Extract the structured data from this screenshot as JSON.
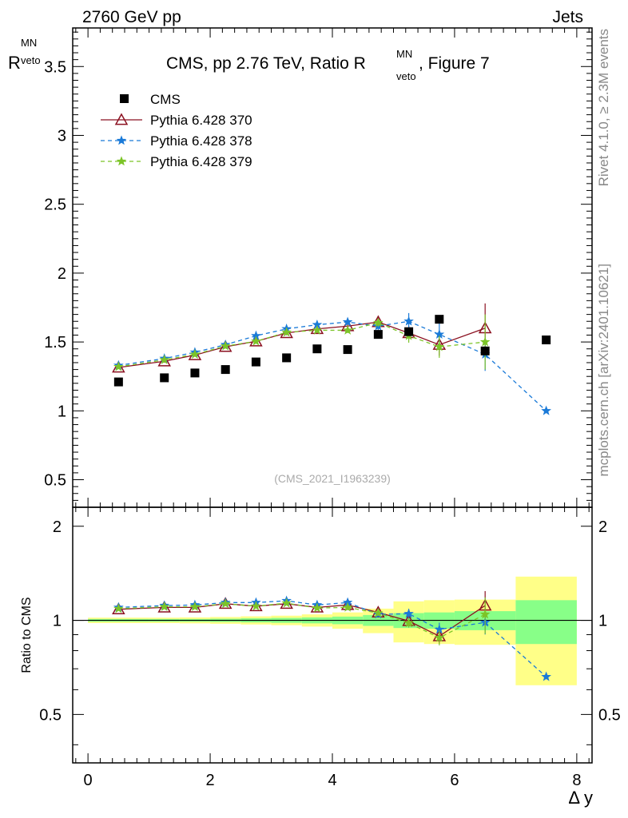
{
  "header": {
    "left": "2760 GeV pp",
    "right": "Jets"
  },
  "side_labels": {
    "rivet": "Rivet 4.1.0, ≥ 2.3M events",
    "mcplots": "mcplots.cern.ch [arXiv:2401.10621]"
  },
  "chart_data": {
    "type": "scatter",
    "title": "CMS, pp 2.76 TeV, Ratio R",
    "title_sup": "MN",
    "title_sub": "veto",
    "title_suffix": ", Figure 7",
    "analysis_tag": "(CMS_2021_I1963239)",
    "xlabel": "Δ y",
    "ylabel": "R",
    "ylabel_sup": "MN",
    "ylabel_sub": "veto",
    "ratio_ylabel": "Ratio to CMS",
    "xlim": [
      -0.25,
      8.25
    ],
    "ylim": [
      0.3,
      3.78
    ],
    "ratio_ylim": [
      0.35,
      2.3
    ],
    "x_ticks": [
      0,
      2,
      4,
      6,
      8
    ],
    "y_ticks": [
      0.5,
      1,
      1.5,
      2,
      2.5,
      3,
      3.5
    ],
    "ratio_y_ticks": [
      0.5,
      1,
      2
    ],
    "legend_position": "top-left",
    "legend": [
      {
        "name": "CMS",
        "color": "#000000",
        "marker": "square",
        "line": "none"
      },
      {
        "name": "Pythia 6.428 370",
        "color": "#8b1020",
        "marker": "triangle-open",
        "line": "solid"
      },
      {
        "name": "Pythia 6.428 378",
        "color": "#1a7ad8",
        "marker": "star",
        "line": "dashed"
      },
      {
        "name": "Pythia 6.428 379",
        "color": "#7cc428",
        "marker": "star",
        "line": "dashed"
      }
    ],
    "data": {
      "name": "CMS",
      "x": [
        0.5,
        1.25,
        1.75,
        2.25,
        2.75,
        3.25,
        3.75,
        4.25,
        4.75,
        5.25,
        5.75,
        6.5,
        7.5
      ],
      "y": [
        1.21,
        1.24,
        1.275,
        1.3,
        1.355,
        1.385,
        1.45,
        1.445,
        1.555,
        1.575,
        1.665,
        1.435,
        1.515
      ],
      "bin_edges": [
        0,
        1,
        1.5,
        2,
        2.5,
        3,
        3.5,
        4,
        4.5,
        5,
        5.5,
        6,
        7,
        8
      ],
      "rel_err_stat": [
        0.01,
        0.01,
        0.01,
        0.012,
        0.015,
        0.018,
        0.022,
        0.028,
        0.04,
        0.055,
        0.06,
        0.07,
        0.16
      ],
      "rel_err_total": [
        0.02,
        0.02,
        0.022,
        0.025,
        0.03,
        0.035,
        0.045,
        0.06,
        0.09,
        0.15,
        0.16,
        0.165,
        0.38
      ]
    },
    "series": [
      {
        "name": "Pythia 6.428 370",
        "x": [
          0.5,
          1.25,
          1.75,
          2.25,
          2.75,
          3.25,
          3.75,
          4.25,
          4.75,
          5.25,
          5.75,
          6.5
        ],
        "y": [
          1.315,
          1.36,
          1.405,
          1.465,
          1.505,
          1.565,
          1.595,
          1.615,
          1.645,
          1.565,
          1.48,
          1.6
        ],
        "err": [
          0.01,
          0.01,
          0.01,
          0.012,
          0.012,
          0.015,
          0.018,
          0.02,
          0.03,
          0.05,
          0.08,
          0.18
        ],
        "ratio": [
          1.085,
          1.1,
          1.1,
          1.13,
          1.11,
          1.13,
          1.1,
          1.12,
          1.06,
          0.995,
          0.89,
          1.115
        ]
      },
      {
        "name": "Pythia 6.428 378",
        "x": [
          0.5,
          1.25,
          1.75,
          2.25,
          2.75,
          3.25,
          3.75,
          4.25,
          4.75,
          5.25,
          5.75,
          6.5,
          7.5
        ],
        "y": [
          1.33,
          1.38,
          1.425,
          1.48,
          1.545,
          1.595,
          1.625,
          1.645,
          1.615,
          1.65,
          1.555,
          1.41,
          1.0
        ],
        "err": [
          0.01,
          0.01,
          0.01,
          0.012,
          0.012,
          0.015,
          0.018,
          0.02,
          0.03,
          0.06,
          0.08,
          0.12,
          0.0
        ],
        "ratio": [
          1.1,
          1.115,
          1.12,
          1.14,
          1.14,
          1.155,
          1.12,
          1.14,
          1.045,
          1.05,
          0.935,
          0.985,
          0.66
        ]
      },
      {
        "name": "Pythia 6.428 379",
        "x": [
          0.5,
          1.25,
          1.75,
          2.25,
          2.75,
          3.25,
          3.75,
          4.25,
          4.75,
          5.25,
          5.75,
          6.5
        ],
        "y": [
          1.32,
          1.37,
          1.41,
          1.47,
          1.505,
          1.57,
          1.585,
          1.585,
          1.64,
          1.545,
          1.465,
          1.5
        ],
        "err": [
          0.01,
          0.01,
          0.01,
          0.012,
          0.012,
          0.015,
          0.018,
          0.02,
          0.03,
          0.05,
          0.08,
          0.2
        ],
        "ratio": [
          1.09,
          1.105,
          1.105,
          1.13,
          1.11,
          1.135,
          1.095,
          1.1,
          1.055,
          0.98,
          0.88,
          1.045
        ]
      }
    ]
  }
}
